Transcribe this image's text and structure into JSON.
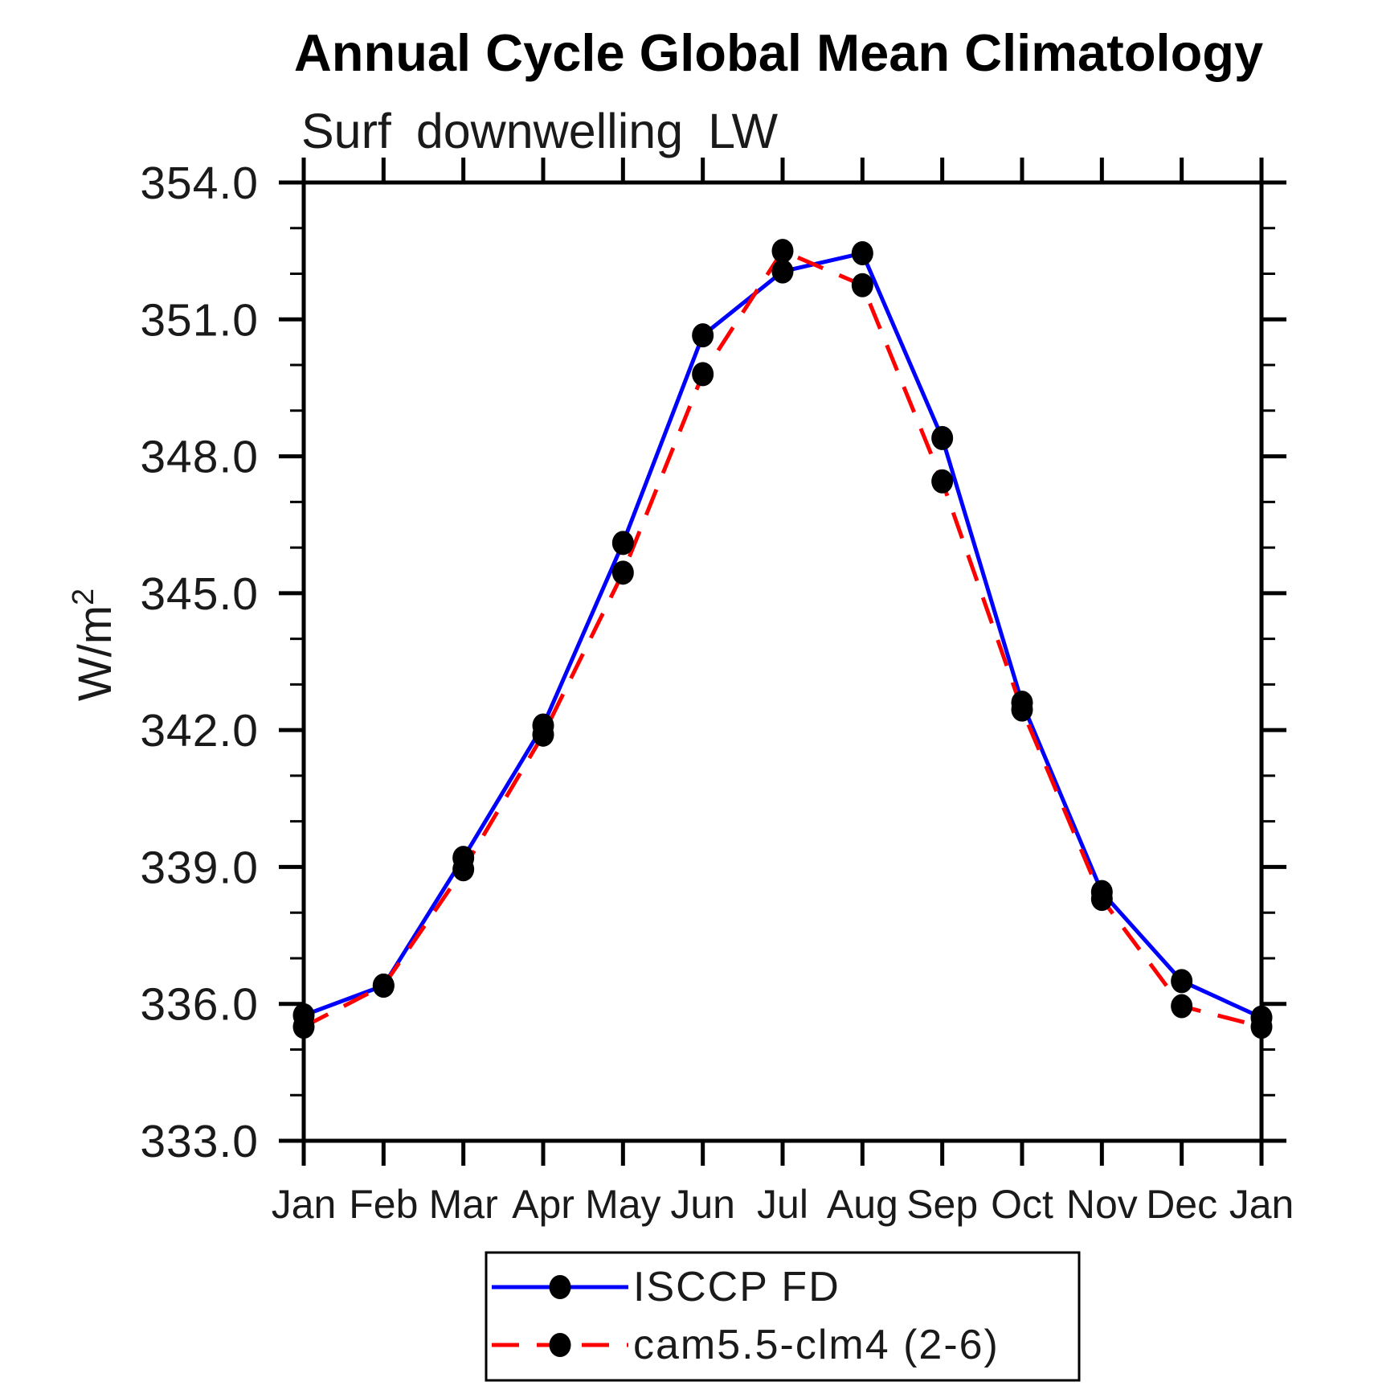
{
  "chart_data": {
    "type": "line",
    "title": "Annual Cycle Global Mean Climatology",
    "subtitle": "Surf downwelling LW",
    "ylabel": "W/m²",
    "ylabel_base": "W/m",
    "ylabel_exponent": "2",
    "categories": [
      "Jan",
      "Feb",
      "Mar",
      "Apr",
      "May",
      "Jun",
      "Jul",
      "Aug",
      "Sep",
      "Oct",
      "Nov",
      "Dec",
      "Jan"
    ],
    "ylim": [
      333.0,
      354.0
    ],
    "ytick_major_step": 3.0,
    "ytick_minor_step": 1.0,
    "ytick_labels": [
      "333.0",
      "336.0",
      "339.0",
      "342.0",
      "345.0",
      "348.0",
      "351.0",
      "354.0"
    ],
    "grid": false,
    "legend_position": "bottom-center",
    "axis_color": "#000000",
    "marker_color": "#000000",
    "series": [
      {
        "name": "ISCCP FD",
        "color": "#0000ff",
        "style": "solid",
        "marker": "circle",
        "values": [
          335.75,
          336.4,
          339.2,
          342.1,
          346.1,
          350.65,
          352.05,
          352.45,
          348.4,
          342.6,
          338.45,
          336.5,
          335.7
        ]
      },
      {
        "name": "cam5.5-clm4 (2-6)",
        "color": "#ff0000",
        "style": "dashed",
        "marker": "circle",
        "values": [
          335.5,
          336.4,
          338.95,
          341.9,
          345.45,
          349.8,
          352.5,
          351.75,
          347.45,
          342.45,
          338.3,
          335.95,
          335.5
        ]
      }
    ]
  }
}
